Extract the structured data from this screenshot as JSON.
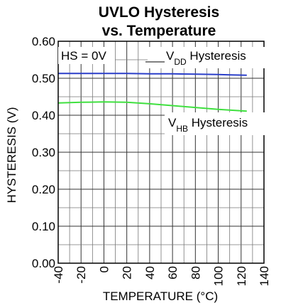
{
  "chart_data": {
    "type": "line",
    "title_line1": "UVLO Hysteresis",
    "title_line2": "vs. Temperature",
    "xlabel": "TEMPERATURE (°C)",
    "ylabel": "HYSTERESIS (V)",
    "xlim": [
      -40,
      140
    ],
    "ylim": [
      0.0,
      0.6
    ],
    "x_ticks": [
      -40,
      -20,
      0,
      20,
      40,
      60,
      80,
      100,
      120,
      140
    ],
    "x_tick_labels": [
      "-40",
      "-20",
      "0",
      "20",
      "40",
      "60",
      "80",
      "100",
      "120",
      "140"
    ],
    "y_ticks": [
      0.0,
      0.1,
      0.2,
      0.3,
      0.4,
      0.5,
      0.6
    ],
    "y_tick_labels": [
      "0.00",
      "0.10",
      "0.20",
      "0.30",
      "0.40",
      "0.50",
      "0.60"
    ],
    "grid": true,
    "condition_label": "HS = 0V",
    "series": [
      {
        "label_main": "V",
        "label_sub": "DD",
        "label_rest": " Hysteresis",
        "color": "#2b3fc9",
        "x": [
          -40,
          -20,
          0,
          20,
          40,
          60,
          80,
          100,
          110,
          125
        ],
        "y": [
          0.513,
          0.513,
          0.513,
          0.513,
          0.512,
          0.512,
          0.511,
          0.51,
          0.509,
          0.508
        ]
      },
      {
        "label_main": "V",
        "label_sub": "HB",
        "label_rest": " Hysteresis",
        "color": "#3fe03f",
        "x": [
          -40,
          -20,
          0,
          20,
          40,
          60,
          80,
          100,
          125
        ],
        "y": [
          0.433,
          0.435,
          0.436,
          0.435,
          0.431,
          0.426,
          0.421,
          0.416,
          0.411
        ]
      }
    ]
  }
}
